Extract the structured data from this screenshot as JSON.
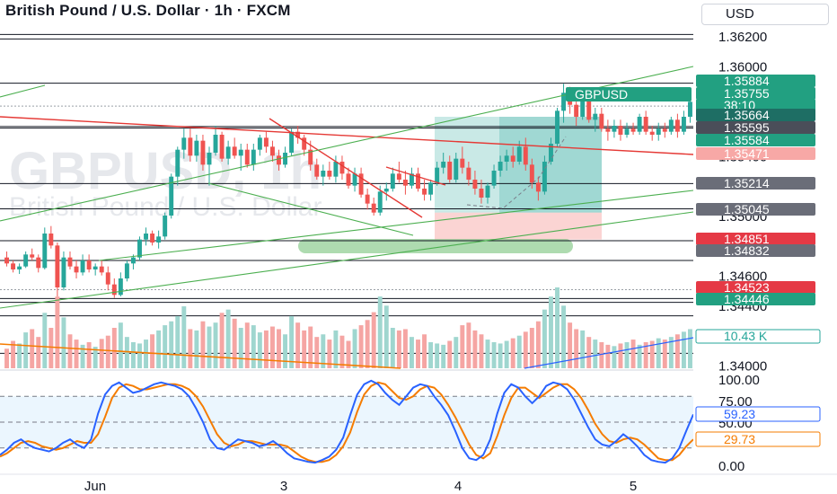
{
  "header": {
    "title": "British Pound / U.S. Dollar · 1h · FXCM",
    "currency": "USD"
  },
  "watermark": {
    "symbol": "GBPUSD, 1h",
    "description": "British Pound / U.S. Dollar"
  },
  "colors": {
    "up": "#26a69a",
    "down": "#ef5350",
    "up_vol": "#9fd6cf",
    "down_vol": "#f5a5a3",
    "k_line": "#2962ff",
    "d_line": "#f57c00",
    "trend_red": "#e53935",
    "trend_green": "#4caf50",
    "level": "#131722"
  },
  "price_axis": {
    "ticks": [
      "1.36200",
      "1.36000",
      "1.34600",
      "1.34400",
      "1.34000"
    ],
    "ylim": [
      1.3398,
      1.3626
    ],
    "tags": [
      {
        "text": "1.35884",
        "bg": "#22a081",
        "fg": "#ffffff"
      },
      {
        "text": "1.35755",
        "bg": "#22a081",
        "fg": "#ffffff"
      },
      {
        "text": "38:10",
        "bg": "#22a081",
        "fg": "#ffffff"
      },
      {
        "text": "1.35664",
        "bg": "#1e6e64",
        "fg": "#ffffff"
      },
      {
        "text": "1.35595",
        "bg": "#4a4e59",
        "fg": "#ffffff"
      },
      {
        "text": "1.35584",
        "bg": "#22a081",
        "fg": "#ffffff"
      },
      {
        "text": "1.35471",
        "bg": "#f7a8a6",
        "fg": "#ffffff"
      },
      {
        "text": "1.35214",
        "bg": "#6a6d78",
        "fg": "#ffffff"
      },
      {
        "text": "1.35045",
        "bg": "#6a6d78",
        "fg": "#ffffff"
      },
      {
        "text": "1.34851",
        "bg": "#e53945",
        "fg": "#ffffff"
      },
      {
        "text": "1.34832",
        "bg": "#6a6d78",
        "fg": "#ffffff"
      },
      {
        "text": "1.34523",
        "bg": "#e53945",
        "fg": "#ffffff"
      },
      {
        "text": "1.34446",
        "bg": "#22a081",
        "fg": "#ffffff"
      }
    ],
    "grey_ticks": [
      "1.35400",
      "1.35000"
    ],
    "volume_tag": "10.43 K"
  },
  "symbol_label": "GBPUSD",
  "oscillator": {
    "ticks": [
      "100.00",
      "75.00",
      "50.00",
      "0.00"
    ],
    "k_value": "59.23",
    "d_value": "29.73",
    "range": [
      0,
      100
    ],
    "band": [
      20,
      80
    ]
  },
  "time_axis": {
    "labels": [
      "Jun",
      "3",
      "4",
      "5"
    ]
  },
  "chart_data": {
    "type": "candlestick",
    "timeframe": "1h",
    "candles": [
      [
        1.3472,
        1.3476,
        1.3466,
        1.3468
      ],
      [
        1.3468,
        1.347,
        1.3462,
        1.3464
      ],
      [
        1.3464,
        1.3468,
        1.3461,
        1.3466
      ],
      [
        1.3466,
        1.3476,
        1.3465,
        1.3474
      ],
      [
        1.3474,
        1.3478,
        1.347,
        1.3472
      ],
      [
        1.3472,
        1.3474,
        1.3462,
        1.3465
      ],
      [
        1.3465,
        1.3492,
        1.3464,
        1.3488
      ],
      [
        1.3488,
        1.3493,
        1.3478,
        1.348
      ],
      [
        1.348,
        1.3482,
        1.3446,
        1.3452
      ],
      [
        1.3452,
        1.3476,
        1.345,
        1.3472
      ],
      [
        1.3472,
        1.3476,
        1.3464,
        1.3466
      ],
      [
        1.3466,
        1.347,
        1.3458,
        1.3462
      ],
      [
        1.3462,
        1.3474,
        1.346,
        1.347
      ],
      [
        1.347,
        1.3474,
        1.3462,
        1.3464
      ],
      [
        1.3464,
        1.3468,
        1.346,
        1.3466
      ],
      [
        1.3466,
        1.347,
        1.346,
        1.3462
      ],
      [
        1.3462,
        1.3466,
        1.345,
        1.3454
      ],
      [
        1.3454,
        1.3458,
        1.3445,
        1.3447
      ],
      [
        1.3447,
        1.3462,
        1.3446,
        1.3458
      ],
      [
        1.3458,
        1.347,
        1.3456,
        1.3468
      ],
      [
        1.3468,
        1.3474,
        1.3464,
        1.3472
      ],
      [
        1.3472,
        1.3486,
        1.347,
        1.3484
      ],
      [
        1.3484,
        1.3492,
        1.348,
        1.3488
      ],
      [
        1.3488,
        1.349,
        1.348,
        1.3482
      ],
      [
        1.3482,
        1.349,
        1.3478,
        1.3486
      ],
      [
        1.3486,
        1.3502,
        1.3484,
        1.35
      ],
      [
        1.35,
        1.3528,
        1.3498,
        1.3526
      ],
      [
        1.3526,
        1.3546,
        1.352,
        1.3544
      ],
      [
        1.3544,
        1.3558,
        1.3538,
        1.3552
      ],
      [
        1.3552,
        1.3558,
        1.3536,
        1.354
      ],
      [
        1.354,
        1.3554,
        1.3536,
        1.355
      ],
      [
        1.355,
        1.3554,
        1.353,
        1.3534
      ],
      [
        1.3534,
        1.3546,
        1.352,
        1.3542
      ],
      [
        1.3542,
        1.356,
        1.354,
        1.3554
      ],
      [
        1.3554,
        1.3556,
        1.3536,
        1.3538
      ],
      [
        1.3538,
        1.355,
        1.3534,
        1.3546
      ],
      [
        1.3546,
        1.3552,
        1.3538,
        1.354
      ],
      [
        1.354,
        1.3548,
        1.353,
        1.3544
      ],
      [
        1.3544,
        1.3548,
        1.3532,
        1.3534
      ],
      [
        1.3534,
        1.3548,
        1.353,
        1.3544
      ],
      [
        1.3544,
        1.3554,
        1.354,
        1.3552
      ],
      [
        1.3552,
        1.3556,
        1.3542,
        1.3546
      ],
      [
        1.3546,
        1.355,
        1.3536,
        1.354
      ],
      [
        1.354,
        1.3544,
        1.353,
        1.3534
      ],
      [
        1.3534,
        1.3546,
        1.3532,
        1.3542
      ],
      [
        1.3542,
        1.3558,
        1.354,
        1.3556
      ],
      [
        1.3556,
        1.356,
        1.3548,
        1.3552
      ],
      [
        1.3552,
        1.3554,
        1.354,
        1.3544
      ],
      [
        1.3544,
        1.355,
        1.353,
        1.3534
      ],
      [
        1.3534,
        1.3538,
        1.3524,
        1.3526
      ],
      [
        1.3526,
        1.3534,
        1.352,
        1.353
      ],
      [
        1.353,
        1.3536,
        1.3524,
        1.3526
      ],
      [
        1.3526,
        1.354,
        1.3522,
        1.3536
      ],
      [
        1.3536,
        1.354,
        1.3524,
        1.3528
      ],
      [
        1.3528,
        1.3532,
        1.3518,
        1.352
      ],
      [
        1.352,
        1.3532,
        1.3516,
        1.3528
      ],
      [
        1.3528,
        1.3532,
        1.3512,
        1.3514
      ],
      [
        1.3514,
        1.3518,
        1.3504,
        1.3508
      ],
      [
        1.3508,
        1.3512,
        1.35,
        1.3502
      ],
      [
        1.3502,
        1.352,
        1.35,
        1.3516
      ],
      [
        1.3516,
        1.3522,
        1.351,
        1.3518
      ],
      [
        1.3518,
        1.3532,
        1.3516,
        1.3528
      ],
      [
        1.3528,
        1.3536,
        1.3522,
        1.3524
      ],
      [
        1.3524,
        1.353,
        1.3514,
        1.352
      ],
      [
        1.352,
        1.3532,
        1.3518,
        1.3528
      ],
      [
        1.3528,
        1.3532,
        1.3516,
        1.3518
      ],
      [
        1.3518,
        1.3524,
        1.351,
        1.3514
      ],
      [
        1.3514,
        1.3524,
        1.351,
        1.3522
      ],
      [
        1.3522,
        1.3536,
        1.352,
        1.3532
      ],
      [
        1.3532,
        1.3542,
        1.3528,
        1.3536
      ],
      [
        1.3536,
        1.354,
        1.3522,
        1.3524
      ],
      [
        1.3524,
        1.3542,
        1.3522,
        1.3538
      ],
      [
        1.3538,
        1.3546,
        1.3528,
        1.3532
      ],
      [
        1.3532,
        1.3536,
        1.352,
        1.3524
      ],
      [
        1.3524,
        1.353,
        1.3514,
        1.3518
      ],
      [
        1.3518,
        1.3524,
        1.3508,
        1.3512
      ],
      [
        1.3512,
        1.3522,
        1.3508,
        1.352
      ],
      [
        1.352,
        1.3534,
        1.3518,
        1.353
      ],
      [
        1.353,
        1.354,
        1.3526,
        1.3536
      ],
      [
        1.3536,
        1.3544,
        1.353,
        1.354
      ],
      [
        1.354,
        1.3546,
        1.3532,
        1.3536
      ],
      [
        1.3536,
        1.355,
        1.3534,
        1.3546
      ],
      [
        1.3546,
        1.3552,
        1.353,
        1.3534
      ],
      [
        1.3534,
        1.3538,
        1.3518,
        1.3522
      ],
      [
        1.3522,
        1.3526,
        1.351,
        1.3516
      ],
      [
        1.3516,
        1.354,
        1.3514,
        1.3536
      ],
      [
        1.3536,
        1.3552,
        1.3534,
        1.3548
      ],
      [
        1.3548,
        1.3572,
        1.3546,
        1.357
      ],
      [
        1.357,
        1.3588,
        1.3562,
        1.3582
      ],
      [
        1.3582,
        1.3586,
        1.3568,
        1.3574
      ],
      [
        1.3574,
        1.358,
        1.356,
        1.3566
      ],
      [
        1.3566,
        1.3582,
        1.3564,
        1.3578
      ],
      [
        1.3578,
        1.358,
        1.3562,
        1.3564
      ],
      [
        1.3564,
        1.3572,
        1.3556,
        1.3568
      ],
      [
        1.3568,
        1.3572,
        1.3556,
        1.3558
      ],
      [
        1.3558,
        1.3564,
        1.355,
        1.3556
      ],
      [
        1.3556,
        1.3564,
        1.3552,
        1.356
      ],
      [
        1.356,
        1.3564,
        1.355,
        1.3554
      ],
      [
        1.3554,
        1.3562,
        1.3552,
        1.3558
      ],
      [
        1.3558,
        1.3562,
        1.3554,
        1.3556
      ],
      [
        1.3556,
        1.3568,
        1.3554,
        1.3566
      ],
      [
        1.3566,
        1.357,
        1.3554,
        1.3556
      ],
      [
        1.3556,
        1.356,
        1.355,
        1.3554
      ],
      [
        1.3554,
        1.3562,
        1.355,
        1.3558
      ],
      [
        1.3558,
        1.3562,
        1.3552,
        1.3556
      ],
      [
        1.3556,
        1.3566,
        1.3554,
        1.3564
      ],
      [
        1.3564,
        1.3568,
        1.3552,
        1.3556
      ],
      [
        1.3556,
        1.357,
        1.3554,
        1.3566
      ],
      [
        1.3566,
        1.3578,
        1.3562,
        1.3576
      ]
    ],
    "volume": [
      30,
      42,
      38,
      55,
      60,
      48,
      85,
      62,
      110,
      78,
      52,
      44,
      36,
      40,
      33,
      45,
      50,
      62,
      70,
      48,
      40,
      38,
      44,
      52,
      58,
      66,
      72,
      80,
      95,
      60,
      58,
      72,
      64,
      70,
      85,
      90,
      76,
      62,
      70,
      66,
      55,
      58,
      64,
      60,
      52,
      80,
      70,
      58,
      64,
      48,
      52,
      44,
      58,
      50,
      42,
      60,
      66,
      74,
      86,
      110,
      96,
      62,
      58,
      60,
      48,
      44,
      52,
      40,
      38,
      36,
      42,
      48,
      66,
      70,
      58,
      52,
      44,
      40,
      38,
      42,
      46,
      50,
      56,
      62,
      72,
      90,
      110,
      124,
      96,
      70,
      60,
      58,
      48,
      44,
      40,
      36,
      34,
      38,
      40,
      44,
      36,
      40,
      42,
      46,
      44,
      48,
      52,
      56,
      60
    ],
    "stoch_k": [
      12,
      18,
      26,
      30,
      24,
      20,
      18,
      16,
      20,
      26,
      30,
      24,
      20,
      30,
      60,
      82,
      92,
      96,
      90,
      84,
      86,
      90,
      94,
      96,
      94,
      92,
      88,
      80,
      66,
      50,
      30,
      20,
      18,
      24,
      30,
      28,
      26,
      22,
      24,
      28,
      22,
      14,
      8,
      6,
      4,
      3,
      6,
      10,
      18,
      32,
      58,
      82,
      94,
      98,
      94,
      84,
      76,
      70,
      80,
      90,
      94,
      92,
      80,
      70,
      58,
      40,
      20,
      8,
      6,
      12,
      30,
      60,
      84,
      94,
      90,
      80,
      72,
      80,
      92,
      96,
      94,
      88,
      76,
      60,
      44,
      30,
      24,
      22,
      28,
      36,
      30,
      22,
      12,
      6,
      4,
      3,
      8,
      20,
      40,
      59
    ],
    "stoch_d": [
      10,
      14,
      20,
      26,
      28,
      26,
      22,
      20,
      18,
      20,
      24,
      28,
      26,
      26,
      36,
      56,
      78,
      90,
      94,
      92,
      88,
      88,
      90,
      92,
      94,
      94,
      92,
      88,
      80,
      68,
      52,
      36,
      26,
      22,
      24,
      28,
      28,
      26,
      24,
      24,
      24,
      22,
      16,
      10,
      6,
      4,
      4,
      6,
      12,
      22,
      38,
      62,
      82,
      92,
      96,
      94,
      86,
      78,
      76,
      80,
      88,
      92,
      90,
      82,
      70,
      56,
      40,
      24,
      12,
      8,
      14,
      34,
      58,
      78,
      90,
      90,
      84,
      78,
      84,
      90,
      94,
      94,
      88,
      78,
      64,
      48,
      36,
      28,
      26,
      30,
      32,
      30,
      24,
      16,
      8,
      6,
      6,
      12,
      22,
      30
    ],
    "ylim": [
      1.3398,
      1.3626
    ]
  }
}
